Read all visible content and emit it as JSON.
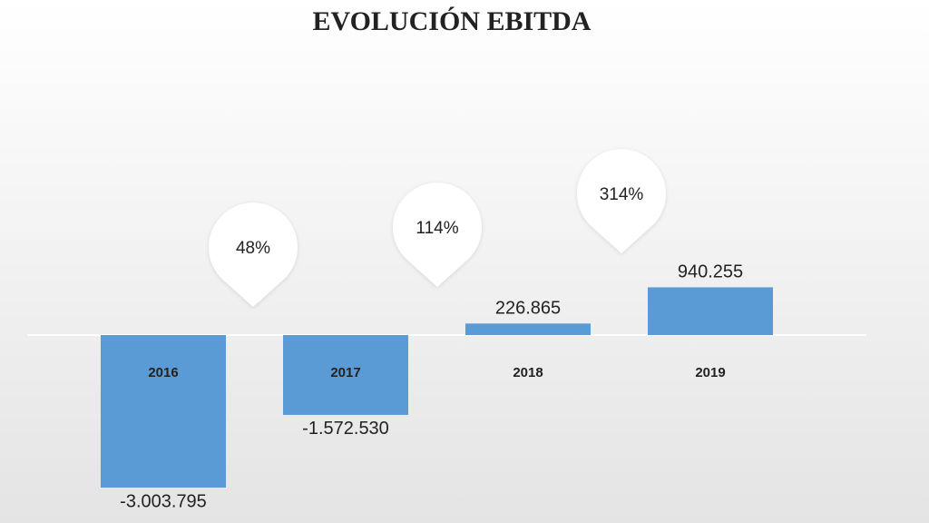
{
  "chart_data": {
    "type": "bar",
    "title": "EVOLUCIÓN EBITDA",
    "categories": [
      "2016",
      "2017",
      "2018",
      "2019"
    ],
    "values": [
      -3003795,
      -1572530,
      226865,
      940255
    ],
    "value_labels": [
      "-3.003.795",
      "-1.572.530",
      "226.865",
      "940.255"
    ],
    "color": "#5b9bd5",
    "annotations": [
      {
        "value": 48,
        "label": "48%"
      },
      {
        "value": 114,
        "label": "114%"
      },
      {
        "value": 314,
        "label": "314%"
      }
    ]
  }
}
